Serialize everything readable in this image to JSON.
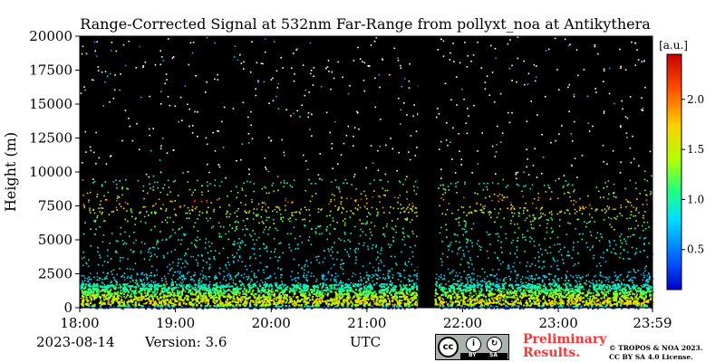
{
  "chart_data": {
    "type": "heatmap",
    "title": "Range-Corrected Signal at 532nm Far-Range from pollyxt_noa at Antikythera",
    "ylabel": "Height (m)",
    "xlabel": "UTC",
    "x_ticks": [
      "18:00",
      "19:00",
      "20:00",
      "21:00",
      "22:00",
      "23:00",
      "23:59"
    ],
    "y_ticks": [
      0,
      2500,
      5000,
      7500,
      10000,
      12500,
      15000,
      17500,
      20000
    ],
    "ylim": [
      0,
      20000
    ],
    "xlim": [
      "18:00",
      "23:59"
    ],
    "colorbar": {
      "label": "[a.u.]",
      "ticks": [
        0.5,
        1.0,
        1.5,
        2.0
      ],
      "tick_labels": [
        "0.5",
        "1.0",
        "1.5",
        "2.0"
      ],
      "range": [
        0.1,
        2.45
      ],
      "colormap": "jet"
    },
    "data_gap": {
      "start": "21:32",
      "end": "21:42"
    },
    "profile": [
      {
        "height": 0,
        "value": 0.3
      },
      {
        "height": 300,
        "value": 1.6
      },
      {
        "height": 800,
        "value": 1.5
      },
      {
        "height": 1500,
        "value": 1.0
      },
      {
        "height": 2500,
        "value": 0.75
      },
      {
        "height": 4000,
        "value": 0.85
      },
      {
        "height": 5500,
        "value": 1.0
      },
      {
        "height": 7000,
        "value": 1.4
      },
      {
        "height": 8000,
        "value": 2.0
      },
      {
        "height": 9000,
        "value": 1.0
      },
      {
        "height": 20000,
        "value": 0.6
      }
    ]
  },
  "footer": {
    "date": "2023-08-14",
    "version": "Version: 3.6",
    "timezone": "UTC",
    "license_badge": {
      "cc": "cc",
      "by": "BY",
      "sa": "SA"
    },
    "preliminary_line1": "Preliminary",
    "preliminary_line2": "Results.",
    "copyright_line1": "© TROPOS & NOA 2023.",
    "copyright_line2": "CC BY SA 4.0 License."
  },
  "colors": {
    "background_plot": "#000000",
    "preliminary": "#ff3333"
  }
}
